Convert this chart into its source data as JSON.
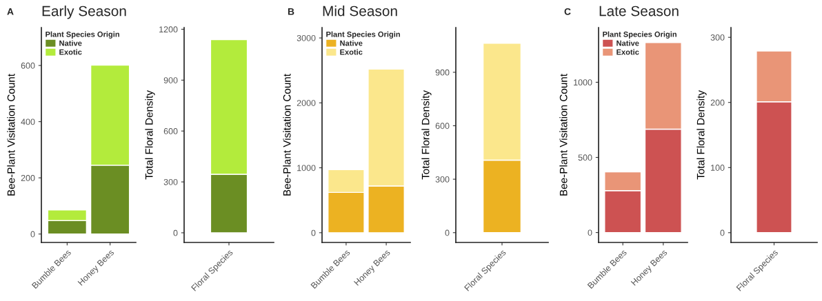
{
  "chart_data": [
    {
      "type": "bar",
      "title": "Early Season",
      "annotations": [
        "A"
      ],
      "ylabel": "Bee-Plant Visitation Count",
      "categories": [
        "Bumble Bees",
        "Honey Bees"
      ],
      "stacked": true,
      "legend": "top left",
      "legend_title": "Plant Species Origin",
      "ylim": [
        -30,
        735
      ],
      "yticks": [
        0,
        200,
        400,
        600
      ],
      "grid": false,
      "series": [
        {
          "name": "Native",
          "color": "#6b8e23",
          "values": [
            48,
            245
          ]
        },
        {
          "name": "Exotic",
          "color": "#b3eb3c",
          "values": [
            38,
            356
          ]
        }
      ]
    },
    {
      "type": "bar",
      "ylabel": "Total Floral Density",
      "categories": [
        "Floral Species"
      ],
      "stacked": true,
      "ylim": [
        -57,
        1210
      ],
      "yticks": [
        0,
        300,
        600,
        900,
        1200
      ],
      "grid": false,
      "series": [
        {
          "color": "#6b8e23",
          "values": [
            345
          ]
        },
        {
          "color": "#b3eb3c",
          "values": [
            794
          ]
        }
      ]
    },
    {
      "type": "bar",
      "title": "Mid Season",
      "annotations": [
        "B"
      ],
      "ylabel": "Bee-Plant Visitation Count",
      "categories": [
        "Bumble Bees",
        "Honey Bees"
      ],
      "stacked": true,
      "legend": "top left",
      "legend_title": "Plant Species Origin",
      "ylim": [
        -150,
        3160
      ],
      "yticks": [
        0,
        1000,
        2000,
        3000
      ],
      "grid": false,
      "series": [
        {
          "name": "Native",
          "color": "#ecb222",
          "values": [
            620,
            720
          ]
        },
        {
          "name": "Exotic",
          "color": "#fbe78c",
          "values": [
            350,
            1800
          ]
        }
      ]
    },
    {
      "type": "bar",
      "ylabel": "Total Floral Density",
      "categories": [
        "Floral Species"
      ],
      "stacked": true,
      "ylim": [
        -55,
        1151
      ],
      "yticks": [
        0,
        300,
        600,
        900
      ],
      "grid": false,
      "series": [
        {
          "color": "#ecb222",
          "values": [
            407
          ]
        },
        {
          "color": "#fbe78c",
          "values": [
            656
          ]
        }
      ]
    },
    {
      "type": "bar",
      "title": "Late Season",
      "annotations": [
        "C"
      ],
      "ylabel": "Bee-Plant Visitation Count",
      "categories": [
        "Bumble Bees",
        "Honey Bees"
      ],
      "stacked": true,
      "legend": "top left",
      "legend_title": "Plant Species Origin",
      "ylim": [
        -66,
        1364
      ],
      "yticks": [
        0,
        500,
        1000
      ],
      "grid": false,
      "series": [
        {
          "name": "Native",
          "color": "#cd5252",
          "values": [
            279,
            688
          ]
        },
        {
          "name": "Exotic",
          "color": "#e99577",
          "values": [
            125,
            576
          ]
        }
      ]
    },
    {
      "type": "bar",
      "ylabel": "Total Floral Density",
      "categories": [
        "Floral Species"
      ],
      "stacked": true,
      "ylim": [
        -15,
        315
      ],
      "yticks": [
        0,
        100,
        200,
        300
      ],
      "grid": false,
      "series": [
        {
          "color": "#cd5252",
          "values": [
            201
          ]
        },
        {
          "color": "#e99577",
          "values": [
            78
          ]
        }
      ]
    }
  ]
}
